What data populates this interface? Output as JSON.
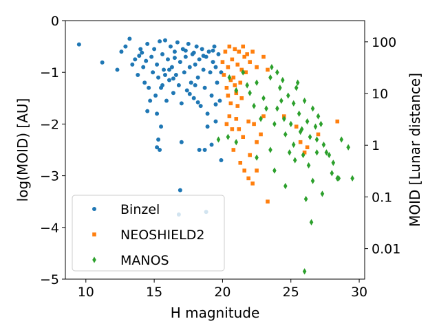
{
  "chart_data": {
    "type": "scatter",
    "xlabel": "H magnitude",
    "ylabel": "log(MOID) [AU]",
    "y2label": "MOID [Lunar distance]",
    "xlim": [
      8.5,
      30.4
    ],
    "ylim": [
      -5,
      0
    ],
    "xticks": [
      10,
      15,
      20,
      25,
      30
    ],
    "yticks": [
      0,
      -1,
      -2,
      -3,
      -4,
      -5
    ],
    "y2ticks": [
      {
        "label": "100",
        "log_ld": 2
      },
      {
        "label": "10",
        "log_ld": 1
      },
      {
        "label": "1",
        "log_ld": 0
      },
      {
        "label": "0.1",
        "log_ld": -1
      },
      {
        "label": "0.01",
        "log_ld": -2
      }
    ],
    "ld_per_au_log10": 2.41,
    "legend": {
      "placement": "lower-left"
    },
    "series": [
      {
        "name": "Binzel",
        "marker": "circle",
        "color": "#1f77b4",
        "points": [
          [
            9.5,
            -0.46
          ],
          [
            11.2,
            -0.81
          ],
          [
            12.3,
            -0.95
          ],
          [
            12.6,
            -0.6
          ],
          [
            12.9,
            -0.5
          ],
          [
            13.2,
            -0.35
          ],
          [
            13.4,
            -0.85
          ],
          [
            13.6,
            -0.75
          ],
          [
            13.8,
            -1.05
          ],
          [
            14.0,
            -0.55
          ],
          [
            14.2,
            -0.9
          ],
          [
            14.3,
            -1.2
          ],
          [
            14.5,
            -0.45
          ],
          [
            14.6,
            -1.3
          ],
          [
            14.8,
            -0.7
          ],
          [
            14.9,
            -1.0
          ],
          [
            15.0,
            -0.55
          ],
          [
            15.1,
            -1.45
          ],
          [
            15.2,
            -0.85
          ],
          [
            15.3,
            -1.1
          ],
          [
            15.4,
            -0.4
          ],
          [
            15.5,
            -1.3
          ],
          [
            15.6,
            -0.65
          ],
          [
            15.7,
            -0.95
          ],
          [
            15.8,
            -0.38
          ],
          [
            15.9,
            -1.55
          ],
          [
            16.0,
            -0.75
          ],
          [
            16.1,
            -1.15
          ],
          [
            16.2,
            -0.5
          ],
          [
            16.3,
            -0.9
          ],
          [
            16.4,
            -1.4
          ],
          [
            16.5,
            -0.6
          ],
          [
            16.6,
            -1.05
          ],
          [
            16.7,
            -0.42
          ],
          [
            16.8,
            -1.25
          ],
          [
            16.9,
            -0.8
          ],
          [
            17.0,
            -1.6
          ],
          [
            17.1,
            -0.55
          ],
          [
            17.2,
            -1.0
          ],
          [
            17.3,
            -0.7
          ],
          [
            17.4,
            -1.35
          ],
          [
            17.5,
            -0.45
          ],
          [
            17.6,
            -0.9
          ],
          [
            17.7,
            -1.2
          ],
          [
            17.8,
            -0.65
          ],
          [
            17.9,
            -1.5
          ],
          [
            18.0,
            -0.85
          ],
          [
            18.1,
            -0.5
          ],
          [
            18.2,
            -1.1
          ],
          [
            18.3,
            -0.75
          ],
          [
            18.4,
            -1.65
          ],
          [
            18.5,
            -0.55
          ],
          [
            18.6,
            -0.95
          ],
          [
            18.7,
            -1.3
          ],
          [
            18.8,
            -0.7
          ],
          [
            18.9,
            -1.8
          ],
          [
            19.0,
            -0.6
          ],
          [
            19.1,
            -1.0
          ],
          [
            19.2,
            -1.45
          ],
          [
            19.3,
            -0.8
          ],
          [
            19.4,
            -0.5
          ],
          [
            19.5,
            -0.9
          ],
          [
            19.6,
            -1.2
          ],
          [
            19.7,
            -0.65
          ],
          [
            19.8,
            -1.55
          ],
          [
            19.9,
            -1.0
          ],
          [
            15.2,
            -1.8
          ],
          [
            15.5,
            -2.05
          ],
          [
            15.3,
            -2.3
          ],
          [
            15.2,
            -2.45
          ],
          [
            15.4,
            -2.5
          ],
          [
            17.0,
            -2.35
          ],
          [
            18.3,
            -2.5
          ],
          [
            18.7,
            -2.5
          ],
          [
            18.9,
            -2.05
          ],
          [
            19.2,
            -2.4
          ],
          [
            19.5,
            -1.95
          ],
          [
            19.9,
            -2.7
          ],
          [
            16.9,
            -3.28
          ],
          [
            16.8,
            -3.75
          ],
          [
            18.8,
            -3.7
          ],
          [
            14.5,
            -1.75
          ],
          [
            14.7,
            -1.55
          ],
          [
            15.6,
            -1.25
          ],
          [
            16.1,
            -0.95
          ],
          [
            16.5,
            -0.72
          ],
          [
            17.3,
            -0.58
          ],
          [
            17.9,
            -0.62
          ],
          [
            18.6,
            -0.68
          ],
          [
            19.3,
            -0.58
          ],
          [
            14.1,
            -0.62
          ],
          [
            14.4,
            -0.78
          ],
          [
            13.9,
            -0.68
          ],
          [
            15.8,
            -1.05
          ],
          [
            16.4,
            -1.12
          ],
          [
            17.6,
            -1.42
          ],
          [
            18.2,
            -1.58
          ],
          [
            19.5,
            -1.62
          ],
          [
            18.0,
            -1.25
          ]
        ]
      },
      {
        "name": "NEOSHIELD2",
        "marker": "square",
        "color": "#ff7f0e",
        "points": [
          [
            20.0,
            -0.8
          ],
          [
            20.1,
            -1.05
          ],
          [
            20.2,
            -0.6
          ],
          [
            20.3,
            -1.3
          ],
          [
            20.4,
            -0.9
          ],
          [
            20.5,
            -0.5
          ],
          [
            20.6,
            -1.6
          ],
          [
            20.7,
            -0.75
          ],
          [
            20.8,
            -1.1
          ],
          [
            20.9,
            -0.55
          ],
          [
            21.0,
            -1.4
          ],
          [
            21.1,
            -0.85
          ],
          [
            21.2,
            -0.6
          ],
          [
            21.3,
            -1.2
          ],
          [
            21.4,
            -0.95
          ],
          [
            21.5,
            -0.5
          ],
          [
            21.6,
            -0.7
          ],
          [
            21.7,
            -1.0
          ],
          [
            21.8,
            -0.65
          ],
          [
            22.0,
            -0.8
          ],
          [
            22.2,
            -0.6
          ],
          [
            22.5,
            -0.9
          ],
          [
            23.0,
            -0.7
          ],
          [
            20.3,
            -2.0
          ],
          [
            20.7,
            -2.1
          ],
          [
            20.5,
            -1.85
          ],
          [
            21.0,
            -1.9
          ],
          [
            21.2,
            -2.1
          ],
          [
            21.5,
            -2.25
          ],
          [
            21.9,
            -1.95
          ],
          [
            22.3,
            -2.0
          ],
          [
            22.5,
            -2.35
          ],
          [
            22.8,
            -2.2
          ],
          [
            23.0,
            -1.85
          ],
          [
            20.8,
            -2.5
          ],
          [
            21.3,
            -2.75
          ],
          [
            21.6,
            -2.9
          ],
          [
            21.9,
            -3.05
          ],
          [
            22.2,
            -3.15
          ],
          [
            22.5,
            -2.9
          ],
          [
            23.3,
            -3.5
          ],
          [
            22.0,
            -2.6
          ],
          [
            24.5,
            -1.85
          ],
          [
            25.4,
            -2.05
          ],
          [
            26.2,
            -2.45
          ],
          [
            27.0,
            -2.2
          ],
          [
            28.4,
            -1.95
          ],
          [
            26.0,
            -2.55
          ],
          [
            25.7,
            -2.35
          ],
          [
            20.4,
            -1.45
          ],
          [
            20.9,
            -1.25
          ],
          [
            21.4,
            -1.5
          ],
          [
            21.1,
            -1.65
          ],
          [
            20.6,
            -1.15
          ],
          [
            23.3,
            -0.95
          ]
        ]
      },
      {
        "name": "MANOS",
        "marker": "diamond",
        "color": "#2ca02c",
        "points": [
          [
            20.5,
            -1.1
          ],
          [
            21.0,
            -1.35
          ],
          [
            21.5,
            -1.0
          ],
          [
            22.0,
            -1.4
          ],
          [
            22.5,
            -1.2
          ],
          [
            23.0,
            -1.5
          ],
          [
            23.5,
            -1.1
          ],
          [
            24.0,
            -1.7
          ],
          [
            24.2,
            -1.3
          ],
          [
            24.5,
            -1.9
          ],
          [
            24.8,
            -1.45
          ],
          [
            25.0,
            -2.0
          ],
          [
            25.2,
            -1.6
          ],
          [
            25.4,
            -1.3
          ],
          [
            25.6,
            -1.8
          ],
          [
            25.8,
            -2.1
          ],
          [
            26.0,
            -1.55
          ],
          [
            26.2,
            -1.95
          ],
          [
            26.4,
            -2.25
          ],
          [
            26.6,
            -1.7
          ],
          [
            26.8,
            -2.05
          ],
          [
            27.0,
            -1.85
          ],
          [
            23.6,
            -0.9
          ],
          [
            24.0,
            -1.0
          ],
          [
            24.4,
            -1.15
          ],
          [
            23.2,
            -1.7
          ],
          [
            22.8,
            -1.9
          ],
          [
            23.8,
            -2.0
          ],
          [
            24.6,
            -2.2
          ],
          [
            25.2,
            -2.4
          ],
          [
            25.9,
            -2.6
          ],
          [
            26.3,
            -2.8
          ],
          [
            26.6,
            -3.1
          ],
          [
            26.9,
            -2.55
          ],
          [
            27.4,
            -2.4
          ],
          [
            27.8,
            -2.6
          ],
          [
            28.0,
            -2.95
          ],
          [
            28.5,
            -3.05
          ],
          [
            28.7,
            -2.3
          ],
          [
            29.2,
            -2.45
          ],
          [
            29.5,
            -3.05
          ],
          [
            28.4,
            -3.05
          ],
          [
            27.3,
            -3.35
          ],
          [
            24.6,
            -3.2
          ],
          [
            25.3,
            -2.7
          ],
          [
            21.0,
            -2.35
          ],
          [
            20.4,
            -2.25
          ],
          [
            19.7,
            -2.3
          ],
          [
            22.5,
            -2.65
          ],
          [
            23.8,
            -2.9
          ],
          [
            26.1,
            -3.45
          ],
          [
            26.5,
            -3.9
          ],
          [
            26.0,
            -4.85
          ],
          [
            23.5,
            -2.5
          ],
          [
            24.9,
            -2.55
          ],
          [
            25.7,
            -2.15
          ],
          [
            22.3,
            -1.65
          ],
          [
            21.8,
            -1.25
          ],
          [
            24.3,
            -1.55
          ],
          [
            25.5,
            -1.2
          ],
          [
            26.9,
            -2.3
          ],
          [
            27.2,
            -2.0
          ],
          [
            27.6,
            -2.55
          ],
          [
            28.1,
            -2.75
          ]
        ]
      }
    ]
  }
}
